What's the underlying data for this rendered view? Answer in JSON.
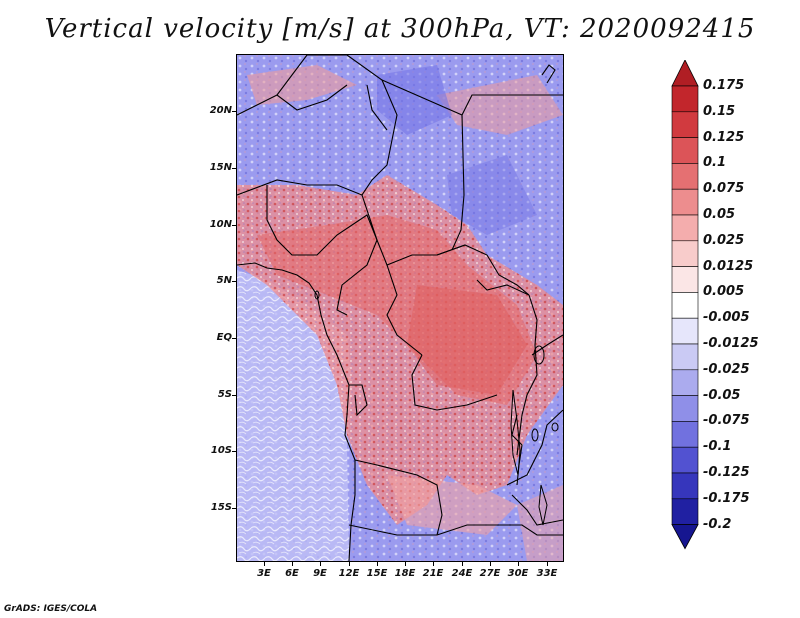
{
  "title": "Vertical velocity [m/s] at 300hPa, VT: 2020092415",
  "credit": "GrADS: IGES/COLA",
  "lat_labels": [
    "20N",
    "15N",
    "10N",
    "5N",
    "EQ",
    "5S",
    "10S",
    "15S"
  ],
  "lon_labels": [
    "3E",
    "6E",
    "9E",
    "12E",
    "15E",
    "18E",
    "21E",
    "24E",
    "27E",
    "30E",
    "33E"
  ],
  "colorbar": {
    "labels": [
      "0.175",
      "0.15",
      "0.125",
      "0.1",
      "0.075",
      "0.05",
      "0.025",
      "0.0125",
      "0.005",
      "-0.005",
      "-0.0125",
      "-0.025",
      "-0.05",
      "-0.075",
      "-0.1",
      "-0.125",
      "-0.175",
      "-0.2"
    ],
    "colors": [
      "#b01e24",
      "#c2262c",
      "#d13a3f",
      "#dc5458",
      "#e57072",
      "#ed8d8e",
      "#f4adad",
      "#f8cccb",
      "#fbe6e6",
      "#ffffff",
      "#e6e6fb",
      "#cacaf4",
      "#ababee",
      "#8f8fe8",
      "#7171df",
      "#5252d1",
      "#3636bc",
      "#2020a2",
      "#161690"
    ]
  },
  "legend_colors": {
    "positive": "#e06666",
    "negative": "#7b7bea",
    "neutral": "#ffffff"
  }
}
